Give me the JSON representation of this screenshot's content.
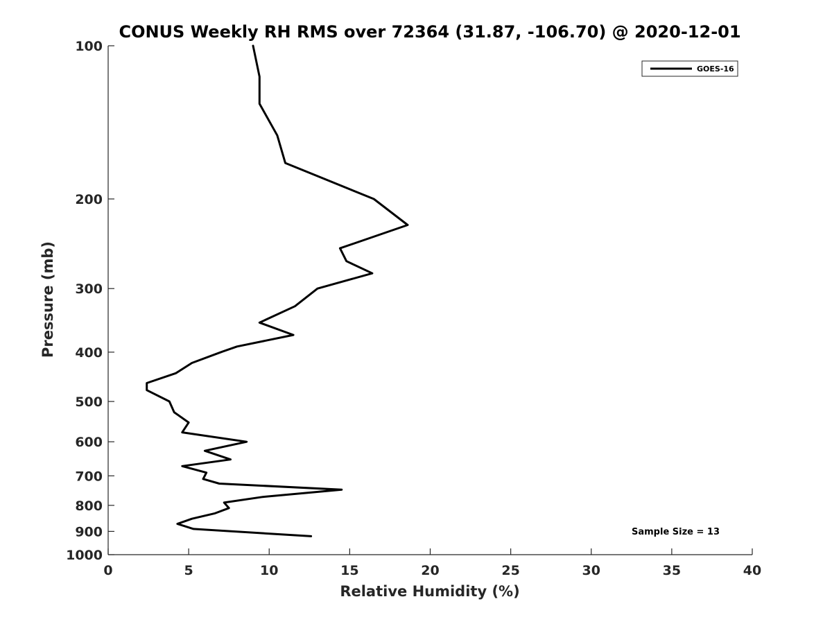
{
  "chart_data": {
    "type": "line",
    "title": "CONUS Weekly RH RMS over 72364 (31.87, -106.70) @ 2020-12-01",
    "xlabel": "Relative Humidity (%)",
    "ylabel": "Pressure (mb)",
    "xlim": [
      0,
      40
    ],
    "ylim": [
      1000,
      100
    ],
    "yscale": "log",
    "y_reversed": true,
    "x_ticks": [
      0,
      5,
      10,
      15,
      20,
      25,
      30,
      35,
      40
    ],
    "y_ticks": [
      100,
      200,
      300,
      400,
      500,
      600,
      700,
      800,
      900,
      1000
    ],
    "grid": false,
    "legend_position": "top-right",
    "series": [
      {
        "name": "GOES-16",
        "color": "#000000",
        "x": [
          9.0,
          9.4,
          9.4,
          10.5,
          11.0,
          16.5,
          18.6,
          14.4,
          14.8,
          16.4,
          13.0,
          11.6,
          9.4,
          11.5,
          8.0,
          7.0,
          5.2,
          4.2,
          2.4,
          2.4,
          3.8,
          4.1,
          5.0,
          4.6,
          8.6,
          6.0,
          7.6,
          4.6,
          6.1,
          5.9,
          6.9,
          14.5,
          9.6,
          7.2,
          7.5,
          6.6,
          5.2,
          4.3,
          5.3,
          12.6
        ],
        "y": [
          100,
          115,
          130,
          150,
          170,
          200,
          225,
          250,
          265,
          280,
          300,
          325,
          350,
          370,
          390,
          400,
          420,
          440,
          460,
          475,
          500,
          525,
          550,
          575,
          600,
          625,
          650,
          670,
          690,
          710,
          725,
          745,
          770,
          790,
          810,
          830,
          850,
          870,
          890,
          920
        ]
      }
    ],
    "annotations": [
      {
        "text": "Sample Size = 13"
      }
    ]
  }
}
